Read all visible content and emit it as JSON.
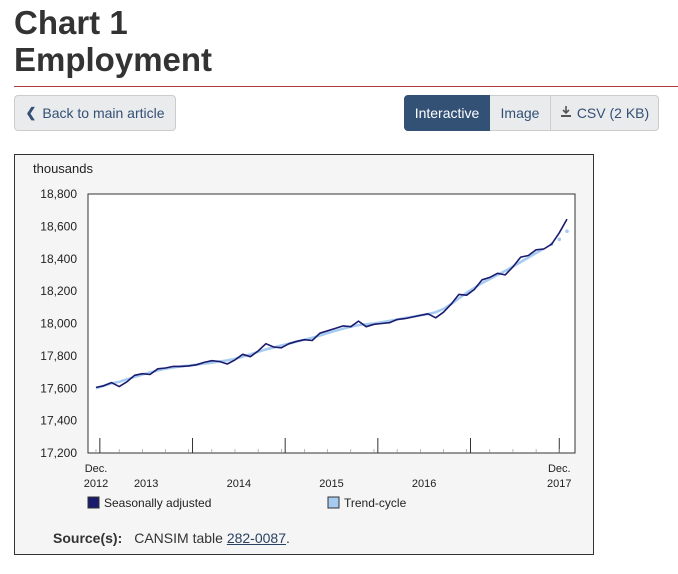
{
  "page": {
    "title_line1": "Chart 1",
    "title_line2": "Employment",
    "accent_color": "#af3c43"
  },
  "toolbar": {
    "back_label": "Back to main article",
    "tabs": [
      {
        "label": "Interactive",
        "active": true
      },
      {
        "label": "Image",
        "active": false
      },
      {
        "label": "CSV (2 KB)",
        "active": false
      }
    ]
  },
  "source": {
    "label": "Source(s):",
    "text": "CANSIM table",
    "link": "282-0087",
    "trailing": "."
  },
  "chart_data": {
    "type": "line",
    "ylabel": "thousands",
    "ylim": [
      17200,
      18800
    ],
    "y_ticks": [
      "17,200",
      "17,400",
      "17,600",
      "17,800",
      "18,000",
      "18,200",
      "18,400",
      "18,600",
      "18,800"
    ],
    "x_start": "Dec. 2012",
    "x_end": "Dec. 2017",
    "x_tick_labels": [
      {
        "line1": "Dec.",
        "line2": "2012",
        "month_index": 0
      },
      {
        "line1": "",
        "line2": "2013",
        "month_index": 6.5
      },
      {
        "line1": "",
        "line2": "2014",
        "month_index": 18.5
      },
      {
        "line1": "",
        "line2": "2015",
        "month_index": 30.5
      },
      {
        "line1": "",
        "line2": "2016",
        "month_index": 42.5
      },
      {
        "line1": "Dec.",
        "line2": "2017",
        "month_index": 60
      }
    ],
    "year_boundaries": [
      0.5,
      12.5,
      24.5,
      36.5,
      48.5,
      60
    ],
    "grid": false,
    "legend_position": "bottom",
    "series": [
      {
        "name": "Seasonally adjusted",
        "color": "#1a1a6e",
        "values": [
          17605,
          17615,
          17635,
          17610,
          17640,
          17680,
          17690,
          17685,
          17720,
          17725,
          17735,
          17735,
          17738,
          17745,
          17760,
          17770,
          17765,
          17750,
          17775,
          17810,
          17795,
          17830,
          17875,
          17855,
          17850,
          17875,
          17890,
          17900,
          17895,
          17940,
          17955,
          17970,
          17985,
          17980,
          18015,
          17980,
          17995,
          18000,
          18005,
          18025,
          18030,
          18040,
          18050,
          18060,
          18035,
          18070,
          18120,
          18180,
          18175,
          18210,
          18270,
          18285,
          18310,
          18300,
          18350,
          18410,
          18420,
          18455,
          18460,
          18490,
          18560,
          18645
        ]
      },
      {
        "name": "Trend-cycle",
        "color": "#a6cbf0",
        "values": [
          17600,
          17615,
          17630,
          17640,
          17655,
          17670,
          17685,
          17698,
          17710,
          17720,
          17728,
          17735,
          17740,
          17746,
          17752,
          17758,
          17765,
          17772,
          17782,
          17795,
          17810,
          17825,
          17840,
          17852,
          17864,
          17876,
          17888,
          17900,
          17912,
          17925,
          17940,
          17955,
          17968,
          17980,
          17990,
          17995,
          18000,
          18008,
          18016,
          18025,
          18034,
          18042,
          18050,
          18058,
          18070,
          18090,
          18120,
          18155,
          18190,
          18220,
          18250,
          18275,
          18300,
          18325,
          18352,
          18380,
          18408,
          18435,
          18462,
          18490,
          18520,
          18570
        ]
      }
    ]
  }
}
